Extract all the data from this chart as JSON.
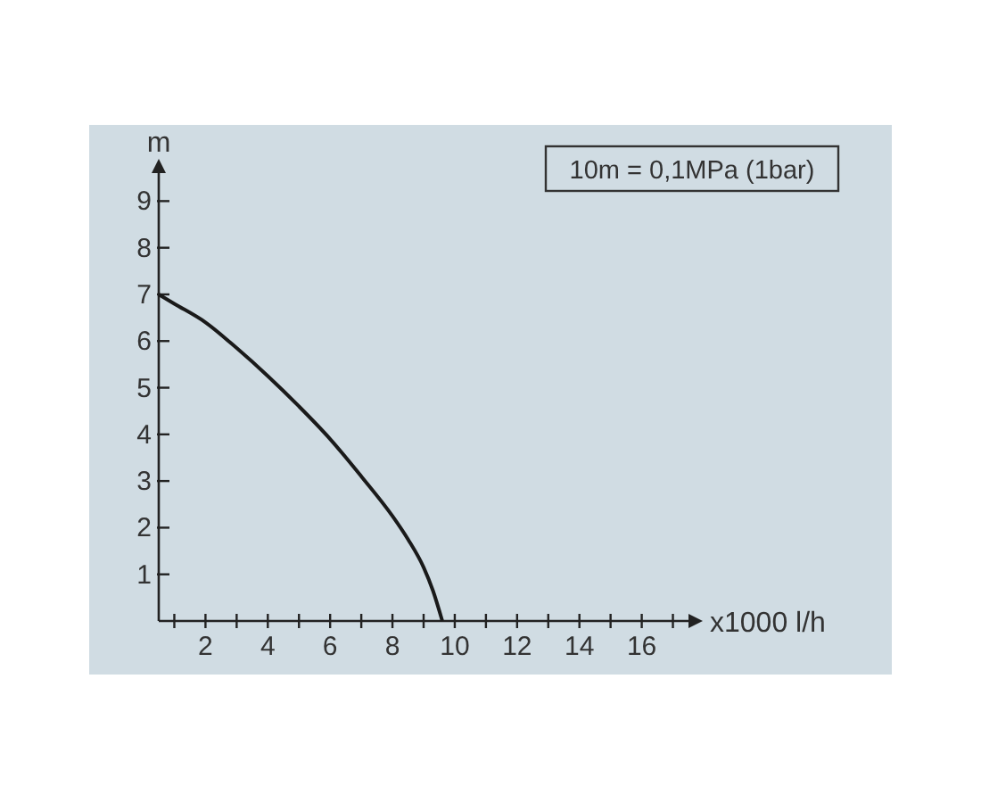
{
  "chart_data": {
    "type": "line",
    "xlabel": "x1000 l/h",
    "ylabel": "m",
    "annotations": [
      "10m = 0,1MPa (1bar)"
    ],
    "xlim": [
      0.5,
      17.5
    ],
    "ylim": [
      0,
      9.6
    ],
    "xticks": [
      {
        "value": 1,
        "label": null
      },
      2,
      {
        "value": 3,
        "label": null
      },
      4,
      {
        "value": 5,
        "label": null
      },
      6,
      {
        "value": 7,
        "label": null
      },
      8,
      {
        "value": 9,
        "label": null
      },
      10,
      {
        "value": 11,
        "label": null
      },
      12,
      {
        "value": 13,
        "label": null
      },
      14,
      {
        "value": 15,
        "label": null
      },
      16,
      {
        "value": 17,
        "label": null
      }
    ],
    "yticks": [
      1,
      2,
      3,
      4,
      5,
      6,
      7,
      8,
      9
    ],
    "grid": false,
    "marker": "none",
    "line_style": "solid",
    "series": [
      {
        "color": "#1a1a1a",
        "x": [
          0.5,
          1,
          2,
          3,
          4,
          5,
          6,
          7,
          8,
          8.5,
          9,
          9.3,
          9.6
        ],
        "values": [
          7,
          6.8,
          6.4,
          5.85,
          5.25,
          4.6,
          3.9,
          3.1,
          2.25,
          1.75,
          1.15,
          0.65,
          0
        ]
      }
    ]
  }
}
